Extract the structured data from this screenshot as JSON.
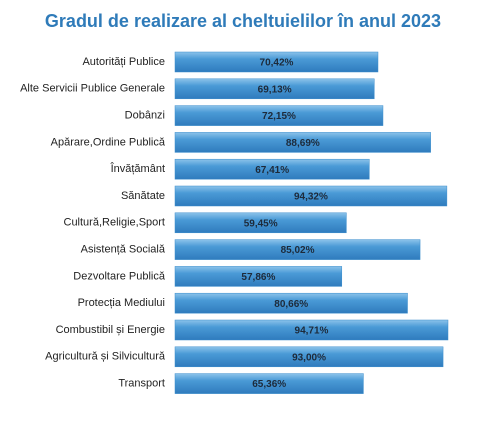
{
  "chart_data": {
    "type": "bar",
    "orientation": "horizontal",
    "title": "Gradul de realizare al cheltuielilor  în anul 2023",
    "categories": [
      "Autorități Publice",
      "Alte Servicii Publice Generale",
      "Dobânzi",
      "Apărare,Ordine Publică",
      "Învățământ",
      "Sănătate",
      "Cultură,Religie,Sport",
      "Asistență Socială",
      "Dezvoltare Publică",
      "Protecția Mediului",
      "Combustibil și Energie",
      "Agricultură și Silvicultură",
      "Transport"
    ],
    "values": [
      70.42,
      69.13,
      72.15,
      88.69,
      67.41,
      94.32,
      59.45,
      85.02,
      57.86,
      80.66,
      94.71,
      93.0,
      65.36
    ],
    "value_labels": [
      "70,42%",
      "69,13%",
      "72,15%",
      "88,69%",
      "67,41%",
      "94,32%",
      "59,45%",
      "85,02%",
      "57,86%",
      "80,66%",
      "94,71%",
      "93,00%",
      "65,36%"
    ],
    "color": "#3a8dcc"
  }
}
